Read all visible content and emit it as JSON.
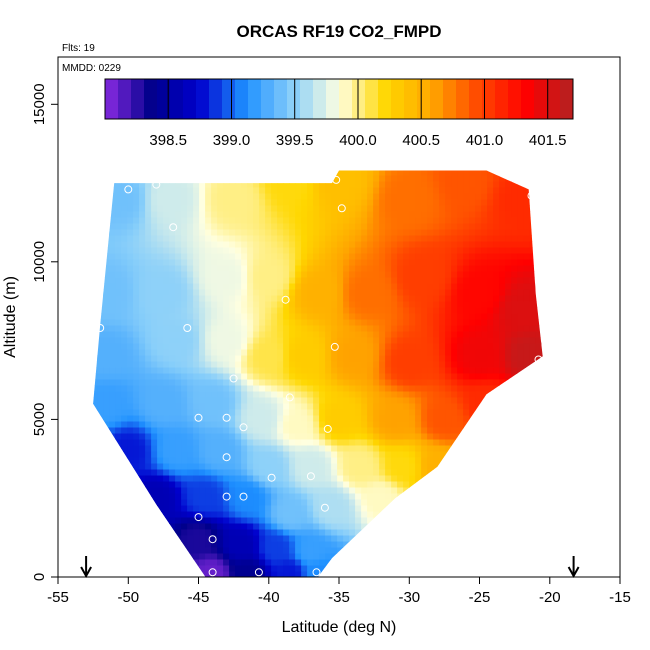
{
  "chart_data": {
    "type": "heatmap",
    "title": "ORCAS RF19 CO2_FMPD",
    "flights_label": "Flts: 19",
    "date_label": "MMDD: 0229",
    "xlabel": "Latitude (deg N)",
    "ylabel": "Altitude (m)",
    "xlim": [
      -55,
      -15
    ],
    "ylim": [
      0,
      16500
    ],
    "x_ticks": [
      -55,
      -50,
      -45,
      -40,
      -35,
      -30,
      -25,
      -20,
      -15
    ],
    "y_ticks": [
      0,
      5000,
      10000,
      15000
    ],
    "colorbar": {
      "range": [
        398.0,
        401.7
      ],
      "ticks": [
        398.5,
        399.0,
        399.5,
        400.0,
        400.5,
        401.0,
        401.5
      ],
      "tick_labels": [
        "398.5",
        "399.0",
        "399.5",
        "400.0",
        "400.5",
        "401.0",
        "401.5"
      ],
      "colors": [
        "#8a2be2",
        "#00008b",
        "#0000cd",
        "#1e90ff",
        "#87cefa",
        "#ffffe0",
        "#ffd700",
        "#ffa500",
        "#ff4500",
        "#ff0000",
        "#b22222"
      ]
    },
    "domain_boundary": [
      [
        -51.0,
        12500
      ],
      [
        -35.5,
        12500
      ],
      [
        -35.0,
        12900
      ],
      [
        -24.5,
        12900
      ],
      [
        -21.5,
        12300
      ],
      [
        -21.0,
        9000
      ],
      [
        -20.5,
        7000
      ],
      [
        -24.5,
        5800
      ],
      [
        -28.0,
        3500
      ],
      [
        -31.0,
        2500
      ],
      [
        -35.5,
        600
      ],
      [
        -36.5,
        0
      ],
      [
        -44.5,
        0
      ],
      [
        -48.0,
        2300
      ],
      [
        -52.5,
        5500
      ],
      [
        -52.0,
        8000
      ],
      [
        -51.0,
        12500
      ]
    ],
    "isolines": [
      {
        "level": 400.0,
        "points": [
          [
            -37.5,
            12500
          ],
          [
            -40.0,
            9500
          ],
          [
            -42.0,
            8000
          ],
          [
            -38.0,
            6000
          ],
          [
            -34.0,
            4500
          ],
          [
            -32.0,
            3000
          ],
          [
            -31.0,
            2500
          ]
        ]
      },
      {
        "level": 399.5,
        "points": [
          [
            -42.5,
            12500
          ],
          [
            -44.0,
            9500
          ],
          [
            -47.0,
            7500
          ],
          [
            -44.0,
            6000
          ],
          [
            -40.0,
            3500
          ],
          [
            -37.0,
            1500
          ],
          [
            -35.5,
            600
          ]
        ]
      },
      {
        "level": 399.0,
        "points": [
          [
            -47.0,
            7000
          ],
          [
            -48.5,
            5000
          ],
          [
            -45.5,
            3500
          ],
          [
            -42.0,
            1500
          ],
          [
            -40.0,
            0
          ]
        ]
      },
      {
        "level": 398.5,
        "points": [
          [
            -49.0,
            4500
          ],
          [
            -47.0,
            2700
          ],
          [
            -44.0,
            1200
          ],
          [
            -42.0,
            0
          ]
        ]
      }
    ],
    "anchors": [
      [
        -50.5,
        12000,
        399.4
      ],
      [
        -47,
        12000,
        399.7
      ],
      [
        -42.5,
        12000,
        400.0
      ],
      [
        -38.5,
        12500,
        400.2
      ],
      [
        -35,
        12500,
        400.4
      ],
      [
        -30,
        12000,
        400.8
      ],
      [
        -26,
        12500,
        400.9
      ],
      [
        -22,
        12000,
        401.1
      ],
      [
        -51.5,
        9000,
        399.4
      ],
      [
        -47.5,
        9000,
        399.5
      ],
      [
        -43,
        9500,
        399.8
      ],
      [
        -40,
        9500,
        400.0
      ],
      [
        -36.5,
        9000,
        400.5
      ],
      [
        -33,
        9000,
        400.8
      ],
      [
        -29,
        9500,
        401.0
      ],
      [
        -25,
        9000,
        401.3
      ],
      [
        -22,
        8500,
        401.5
      ],
      [
        -51.5,
        7000,
        399.3
      ],
      [
        -46.5,
        7500,
        399.5
      ],
      [
        -43,
        7500,
        399.8
      ],
      [
        -40,
        7000,
        400.1
      ],
      [
        -37.5,
        7000,
        400.3
      ],
      [
        -34,
        7000,
        400.6
      ],
      [
        -30,
        6800,
        401.0
      ],
      [
        -25,
        7000,
        401.4
      ],
      [
        -21.5,
        7000,
        401.6
      ],
      [
        -51.5,
        5500,
        399.2
      ],
      [
        -47.5,
        5500,
        399.3
      ],
      [
        -44,
        5500,
        399.4
      ],
      [
        -40.5,
        5000,
        399.7
      ],
      [
        -38,
        4800,
        399.9
      ],
      [
        -35,
        5000,
        400.3
      ],
      [
        -31,
        5000,
        400.6
      ],
      [
        -27.5,
        5000,
        400.9
      ],
      [
        -24.5,
        5500,
        401.1
      ],
      [
        -50,
        4000,
        398.8
      ],
      [
        -46.5,
        4000,
        399.2
      ],
      [
        -43.5,
        4000,
        399.3
      ],
      [
        -40,
        3500,
        399.5
      ],
      [
        -37,
        3500,
        399.7
      ],
      [
        -33.5,
        3500,
        400.0
      ],
      [
        -30.5,
        3500,
        400.2
      ],
      [
        -28,
        3500,
        400.5
      ],
      [
        -48,
        2500,
        398.6
      ],
      [
        -44.5,
        2500,
        398.9
      ],
      [
        -41.5,
        2500,
        399.1
      ],
      [
        -38.5,
        2000,
        399.4
      ],
      [
        -35.5,
        2200,
        399.6
      ],
      [
        -32,
        2500,
        399.9
      ],
      [
        -45,
        1200,
        398.3
      ],
      [
        -42,
        1000,
        398.6
      ],
      [
        -39.5,
        900,
        398.9
      ],
      [
        -37,
        800,
        399.2
      ],
      [
        -44,
        100,
        398.1
      ],
      [
        -41.5,
        100,
        398.4
      ],
      [
        -38.5,
        100,
        398.8
      ],
      [
        -36.5,
        100,
        399.1
      ]
    ],
    "observations": [
      [
        -50.0,
        12300
      ],
      [
        -48.0,
        12450
      ],
      [
        -46.8,
        11100
      ],
      [
        -35.2,
        12600
      ],
      [
        -34.8,
        11700
      ],
      [
        -21.3,
        12100
      ],
      [
        -38.8,
        8800
      ],
      [
        -45.8,
        7900
      ],
      [
        -52.0,
        7900
      ],
      [
        -35.3,
        7300
      ],
      [
        -20.8,
        6900
      ],
      [
        -42.5,
        6300
      ],
      [
        -38.5,
        5700
      ],
      [
        -45.0,
        5050
      ],
      [
        -43.0,
        5050
      ],
      [
        -41.8,
        4750
      ],
      [
        -35.8,
        4700
      ],
      [
        -43.0,
        3800
      ],
      [
        -39.8,
        3150
      ],
      [
        -37.0,
        3200
      ],
      [
        -43.0,
        2550
      ],
      [
        -41.8,
        2550
      ],
      [
        -36.0,
        2200
      ],
      [
        -45.0,
        1900
      ],
      [
        -44.0,
        1200
      ],
      [
        -44.0,
        150
      ],
      [
        -40.7,
        150
      ],
      [
        -36.6,
        150
      ]
    ],
    "arrows": [
      -53.0,
      -18.3
    ],
    "grid": false,
    "legend": "colorbar inside top of plot"
  }
}
